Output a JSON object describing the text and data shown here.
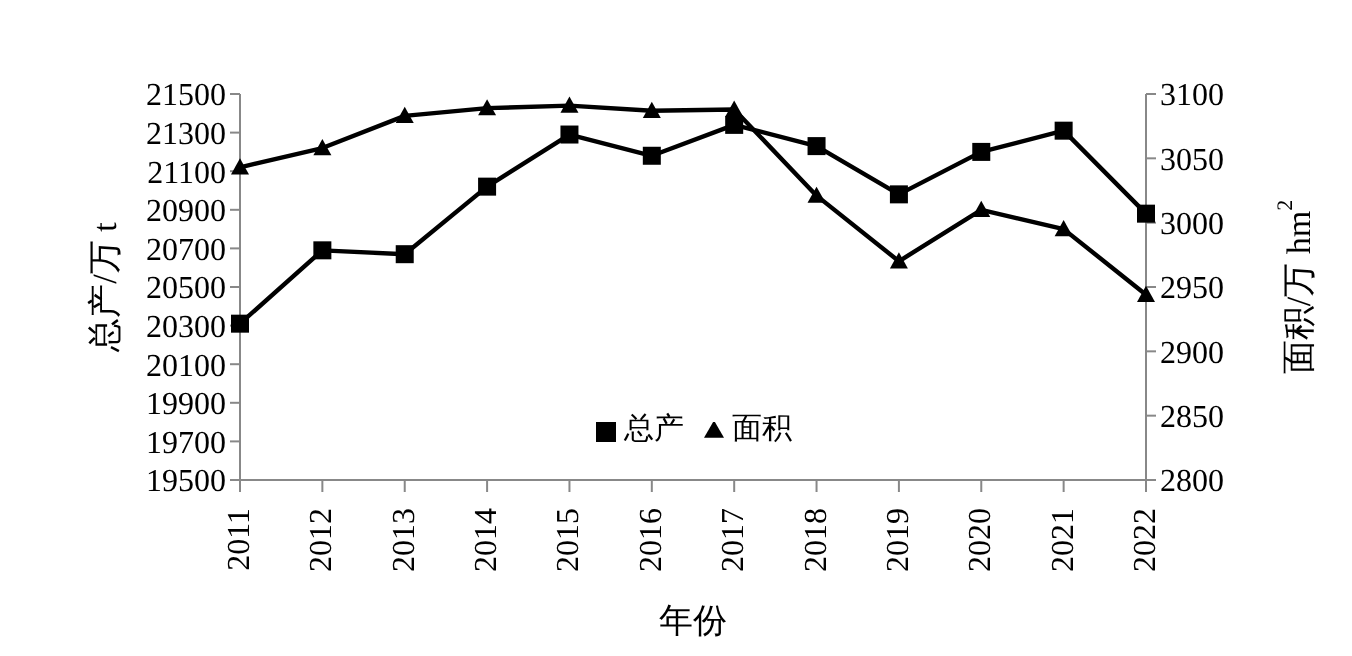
{
  "chart_data": {
    "type": "line",
    "xlabel": "年份",
    "ylabel": "总产/万 t",
    "y2label": "面积/万 hm$^{2}$",
    "categories": [
      "2011",
      "2012",
      "2013",
      "2014",
      "2015",
      "2016",
      "2017",
      "2018",
      "2019",
      "2020",
      "2021",
      "2022"
    ],
    "series": [
      {
        "name": "面积",
        "color": "#000000",
        "marker": "triangle",
        "axis": "y2",
        "values": [
          3043,
          3058,
          3083,
          3089,
          3091,
          3087,
          3088,
          3021,
          2970,
          3010,
          2995,
          2944
        ]
      },
      {
        "name": "总产",
        "color": "#000000",
        "marker": "square",
        "values": [
          20310,
          20690,
          20670,
          21020,
          21290,
          21180,
          21340,
          21230,
          20980,
          21200,
          21310,
          20880
        ]
      }
    ],
    "ylim": [
      19500,
      21500
    ],
    "yticks": [
      19500,
      19700,
      19900,
      20100,
      20300,
      20500,
      20700,
      20900,
      21100,
      21300,
      21500
    ],
    "y2lim": [
      2800,
      3100
    ],
    "y2ticks": [
      2800,
      2850,
      2900,
      2950,
      3000,
      3050,
      3100
    ],
    "legend": "bottom",
    "grid": false
  }
}
